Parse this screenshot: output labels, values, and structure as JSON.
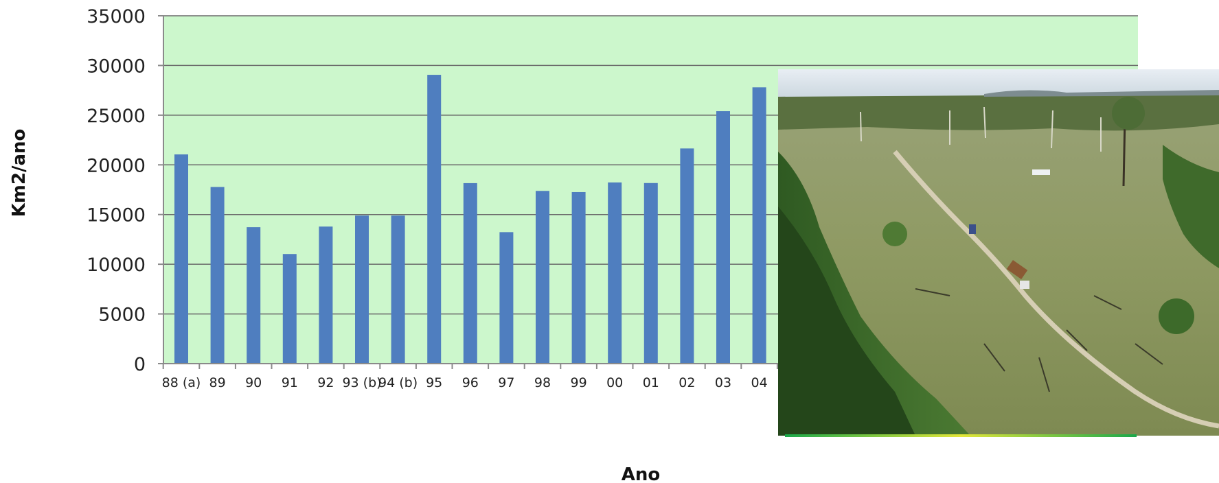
{
  "chart_data": {
    "type": "bar",
    "categories": [
      "88 (a)",
      "89",
      "90",
      "91",
      "92",
      "93 (b)",
      "94 (b)",
      "95",
      "96",
      "97",
      "98",
      "99",
      "00",
      "01",
      "02",
      "03",
      "04"
    ],
    "values": [
      21050,
      17770,
      13730,
      11030,
      13790,
      14900,
      14900,
      29060,
      18160,
      13230,
      17380,
      17260,
      18230,
      18170,
      21650,
      25400,
      27800
    ],
    "xlabel": "Ano",
    "ylabel": "Km2/ano",
    "ylim": [
      0,
      35000
    ],
    "yticks": [
      0,
      5000,
      10000,
      15000,
      20000,
      25000,
      30000,
      35000
    ],
    "grid": true,
    "colors": {
      "bar": "#4f7ebf",
      "plot_bg": "#ccf7cc",
      "grid": "#6a6a6a",
      "axis": "#8a8a8a"
    }
  },
  "photo": {
    "icon": "deforestation-aerial-photo"
  }
}
